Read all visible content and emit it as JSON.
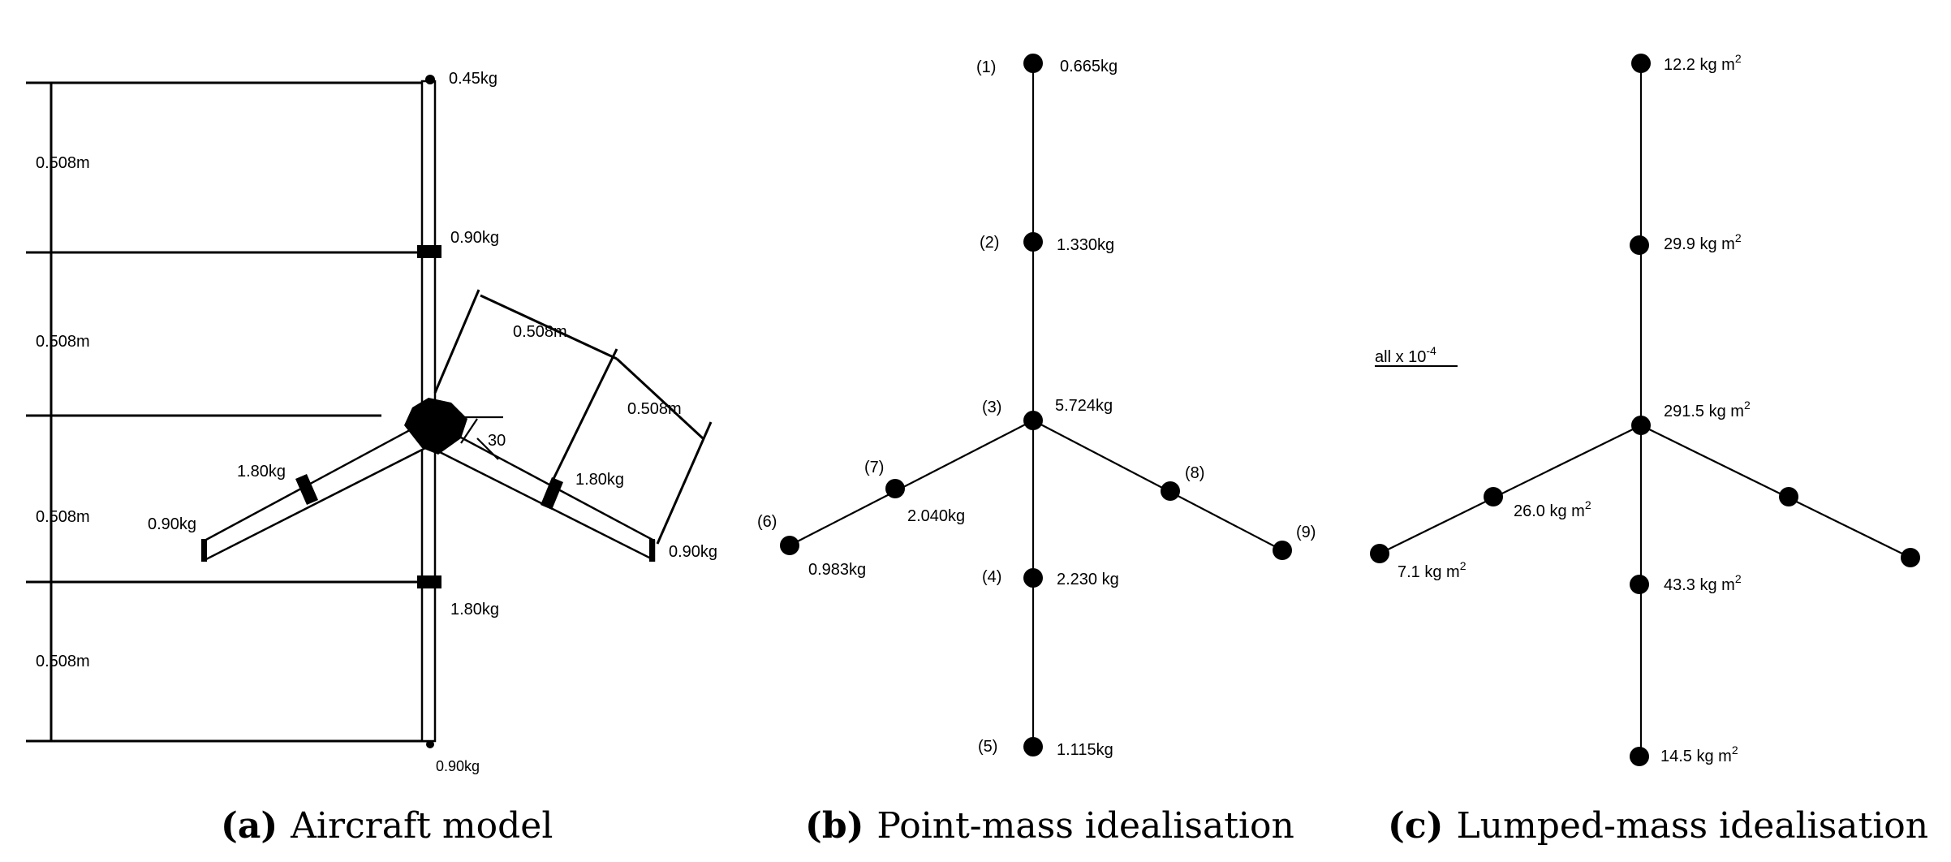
{
  "panel_a": {
    "caption_letter": "(a)",
    "caption_text": "Aircraft model",
    "dims": {
      "left_1": "0.508m",
      "left_2": "0.508m",
      "left_3": "0.508m",
      "left_4": "0.508m",
      "wing_1": "0.508m",
      "wing_2": "0.508m"
    },
    "angle": "30",
    "masses": {
      "top": "0.45kg",
      "fus_upper": "0.90kg",
      "left_wing_mid": "1.80kg",
      "left_wing_tip": "0.90kg",
      "right_wing_mid": "1.80kg",
      "right_wing_tip": "0.90kg",
      "fus_lower": "1.80kg",
      "bottom": "0.90kg"
    }
  },
  "panel_b": {
    "caption_letter": "(b)",
    "caption_text": "Point-mass idealisation",
    "nodes": [
      {
        "id": "(1)",
        "mass": "0.665kg"
      },
      {
        "id": "(2)",
        "mass": "1.330kg"
      },
      {
        "id": "(3)",
        "mass": "5.724kg"
      },
      {
        "id": "(4)",
        "mass": "2.230 kg"
      },
      {
        "id": "(5)",
        "mass": "1.115kg"
      },
      {
        "id": "(6)",
        "mass": "0.983kg"
      },
      {
        "id": "(7)",
        "mass": "2.040kg"
      },
      {
        "id": "(8)",
        "mass": ""
      },
      {
        "id": "(9)",
        "mass": ""
      }
    ]
  },
  "panel_c": {
    "caption_letter": "(c)",
    "caption_text": "Lumped-mass idealisation",
    "scale_note": "all x 10",
    "scale_exp": "-4",
    "unit_sup": "2",
    "inertias": {
      "n1": "12.2 kg m",
      "n2": "29.9 kg m",
      "n3": "291.5 kg m",
      "n7": "26.0 kg m",
      "n6": "7.1 kg m",
      "n4": "43.3 kg m",
      "n5": "14.5 kg m"
    }
  }
}
